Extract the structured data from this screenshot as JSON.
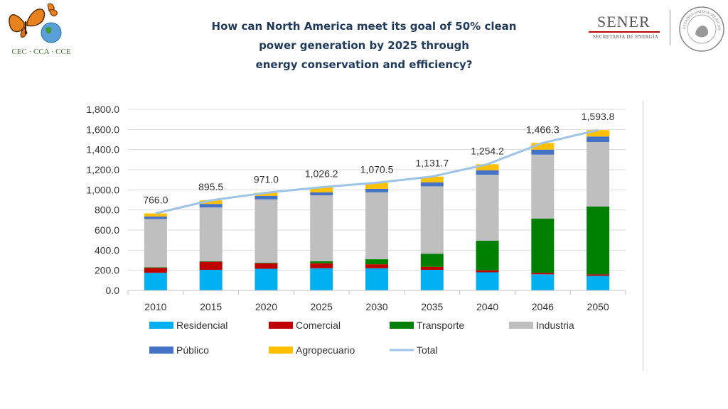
{
  "header": {
    "title_lines": [
      "How can North America meet its goal of 50% clean",
      "power generation by 2025 through",
      "energy conservation and efficiency?"
    ],
    "left_logo_text": "CEC · CCA · CCE",
    "right_logo_word": "SENER",
    "right_logo_sub": "SECRETARÍA DE ENERGÍA",
    "seal_text": "ESTADOS UNIDOS MEXICANOS"
  },
  "chart_data": {
    "type": "bar",
    "stacked": true,
    "categories": [
      "2010",
      "2015",
      "2020",
      "2025",
      "2030",
      "2035",
      "2040",
      "2046",
      "2050"
    ],
    "ylim": [
      0,
      1800
    ],
    "yticks": [
      "0.0",
      "200.0",
      "400.0",
      "600.0",
      "800.0",
      "1,000.0",
      "1,200.0",
      "1,400.0",
      "1,600.0",
      "1,800.0"
    ],
    "grid": true,
    "legend": "bottom",
    "series": [
      {
        "name": "Residencial",
        "color": "#00b0f0",
        "values": [
          175,
          205,
          215,
          220,
          220,
          205,
          180,
          160,
          145
        ]
      },
      {
        "name": "Comercial",
        "color": "#c00000",
        "values": [
          50,
          80,
          55,
          50,
          40,
          30,
          20,
          15,
          15
        ]
      },
      {
        "name": "Transporte",
        "color": "#008000",
        "values": [
          5,
          5,
          5,
          20,
          50,
          130,
          295,
          540,
          675
        ]
      },
      {
        "name": "Industria",
        "color": "#bfbfbf",
        "values": [
          480,
          535,
          630,
          655,
          665,
          670,
          655,
          635,
          640
        ]
      },
      {
        "name": "Público",
        "color": "#4472c4",
        "values": [
          25,
          35,
          35,
          30,
          35,
          40,
          45,
          50,
          55
        ]
      },
      {
        "name": "Agropecuario",
        "color": "#ffc000",
        "values": [
          31,
          35.5,
          31,
          51.2,
          60.5,
          56.7,
          59.2,
          66.3,
          63.8
        ]
      }
    ],
    "total": {
      "name": "Total",
      "color": "#9dc3e6",
      "values": [
        766.0,
        895.5,
        971.0,
        1026.2,
        1070.5,
        1131.7,
        1254.2,
        1466.3,
        1593.8
      ]
    },
    "total_labels": [
      "766.0",
      "895.5",
      "971.0",
      "1,026.2",
      "1,070.5",
      "1,131.7",
      "1,254.2",
      "1,466.3",
      "1,593.8"
    ]
  }
}
